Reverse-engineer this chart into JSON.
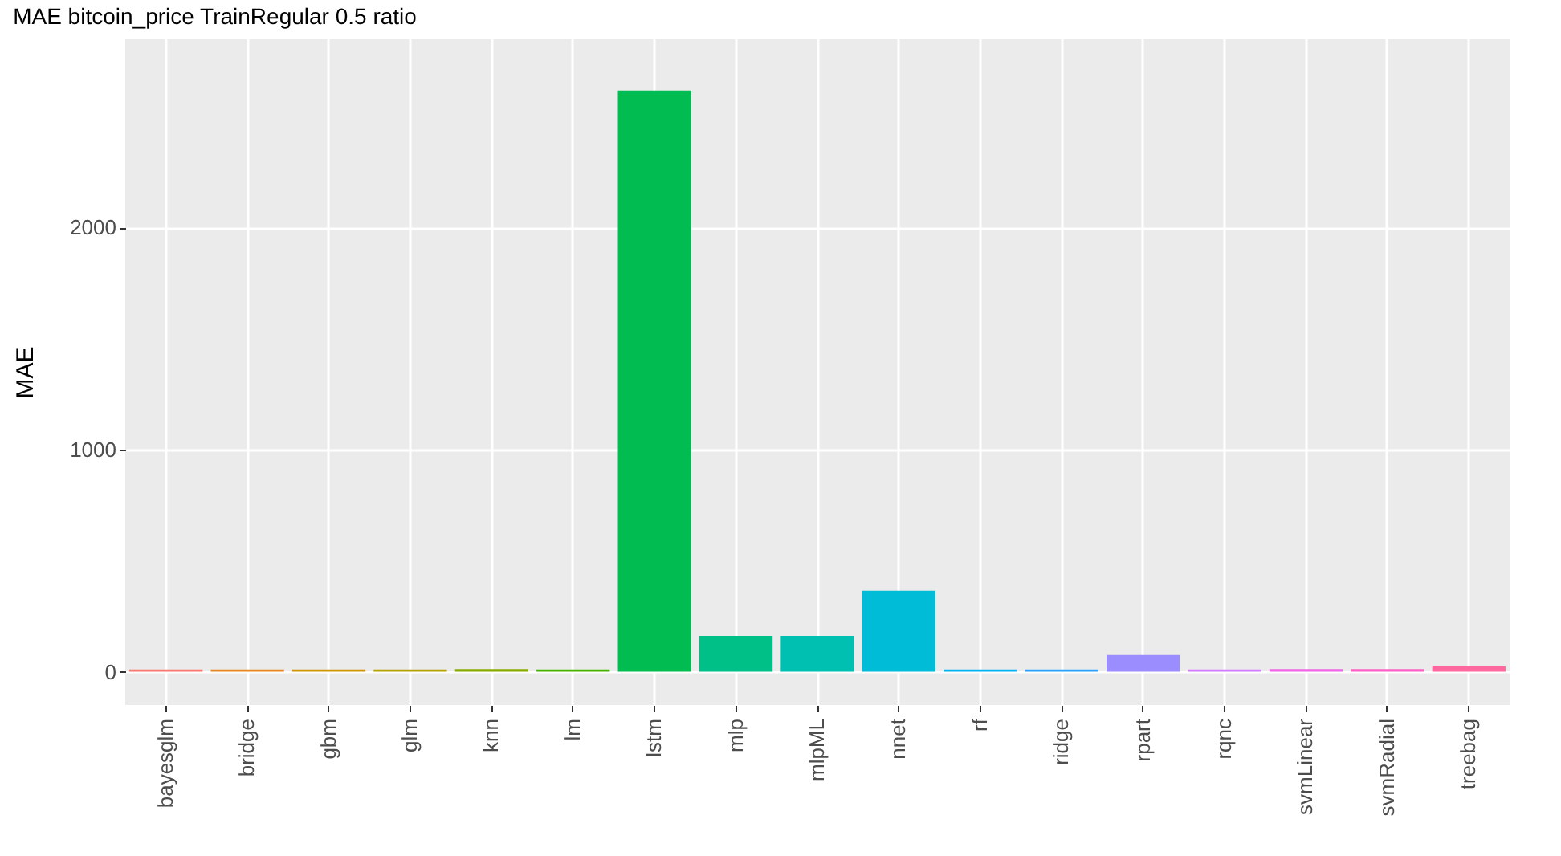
{
  "chart_data": {
    "type": "bar",
    "title": "MAE bitcoin_price TrainRegular 0.5 ratio",
    "ylabel": "MAE",
    "categories": [
      "bayesglm",
      "bridge",
      "gbm",
      "glm",
      "knn",
      "lm",
      "lstm",
      "mlp",
      "mlpML",
      "nnet",
      "rf",
      "ridge",
      "rpart",
      "rqnc",
      "svmLinear",
      "svmRadial",
      "treebag"
    ],
    "values": [
      10,
      10,
      10,
      10,
      12,
      10,
      2616,
      161,
      161,
      364,
      10,
      10,
      75,
      10,
      12,
      12,
      24
    ],
    "colors": [
      "#F8766D",
      "#E7851E",
      "#D09400",
      "#B2A100",
      "#89AC00",
      "#45B500",
      "#00BC51",
      "#00C087",
      "#00C0B2",
      "#00BCD6",
      "#00B3F2",
      "#29A3FF",
      "#9C8DFF",
      "#D277FF",
      "#F166E8",
      "#FF61C7",
      "#FF689E"
    ],
    "ylim": [
      -150,
      2850
    ],
    "yticks": [
      0,
      1000,
      2000
    ],
    "grid": true
  }
}
